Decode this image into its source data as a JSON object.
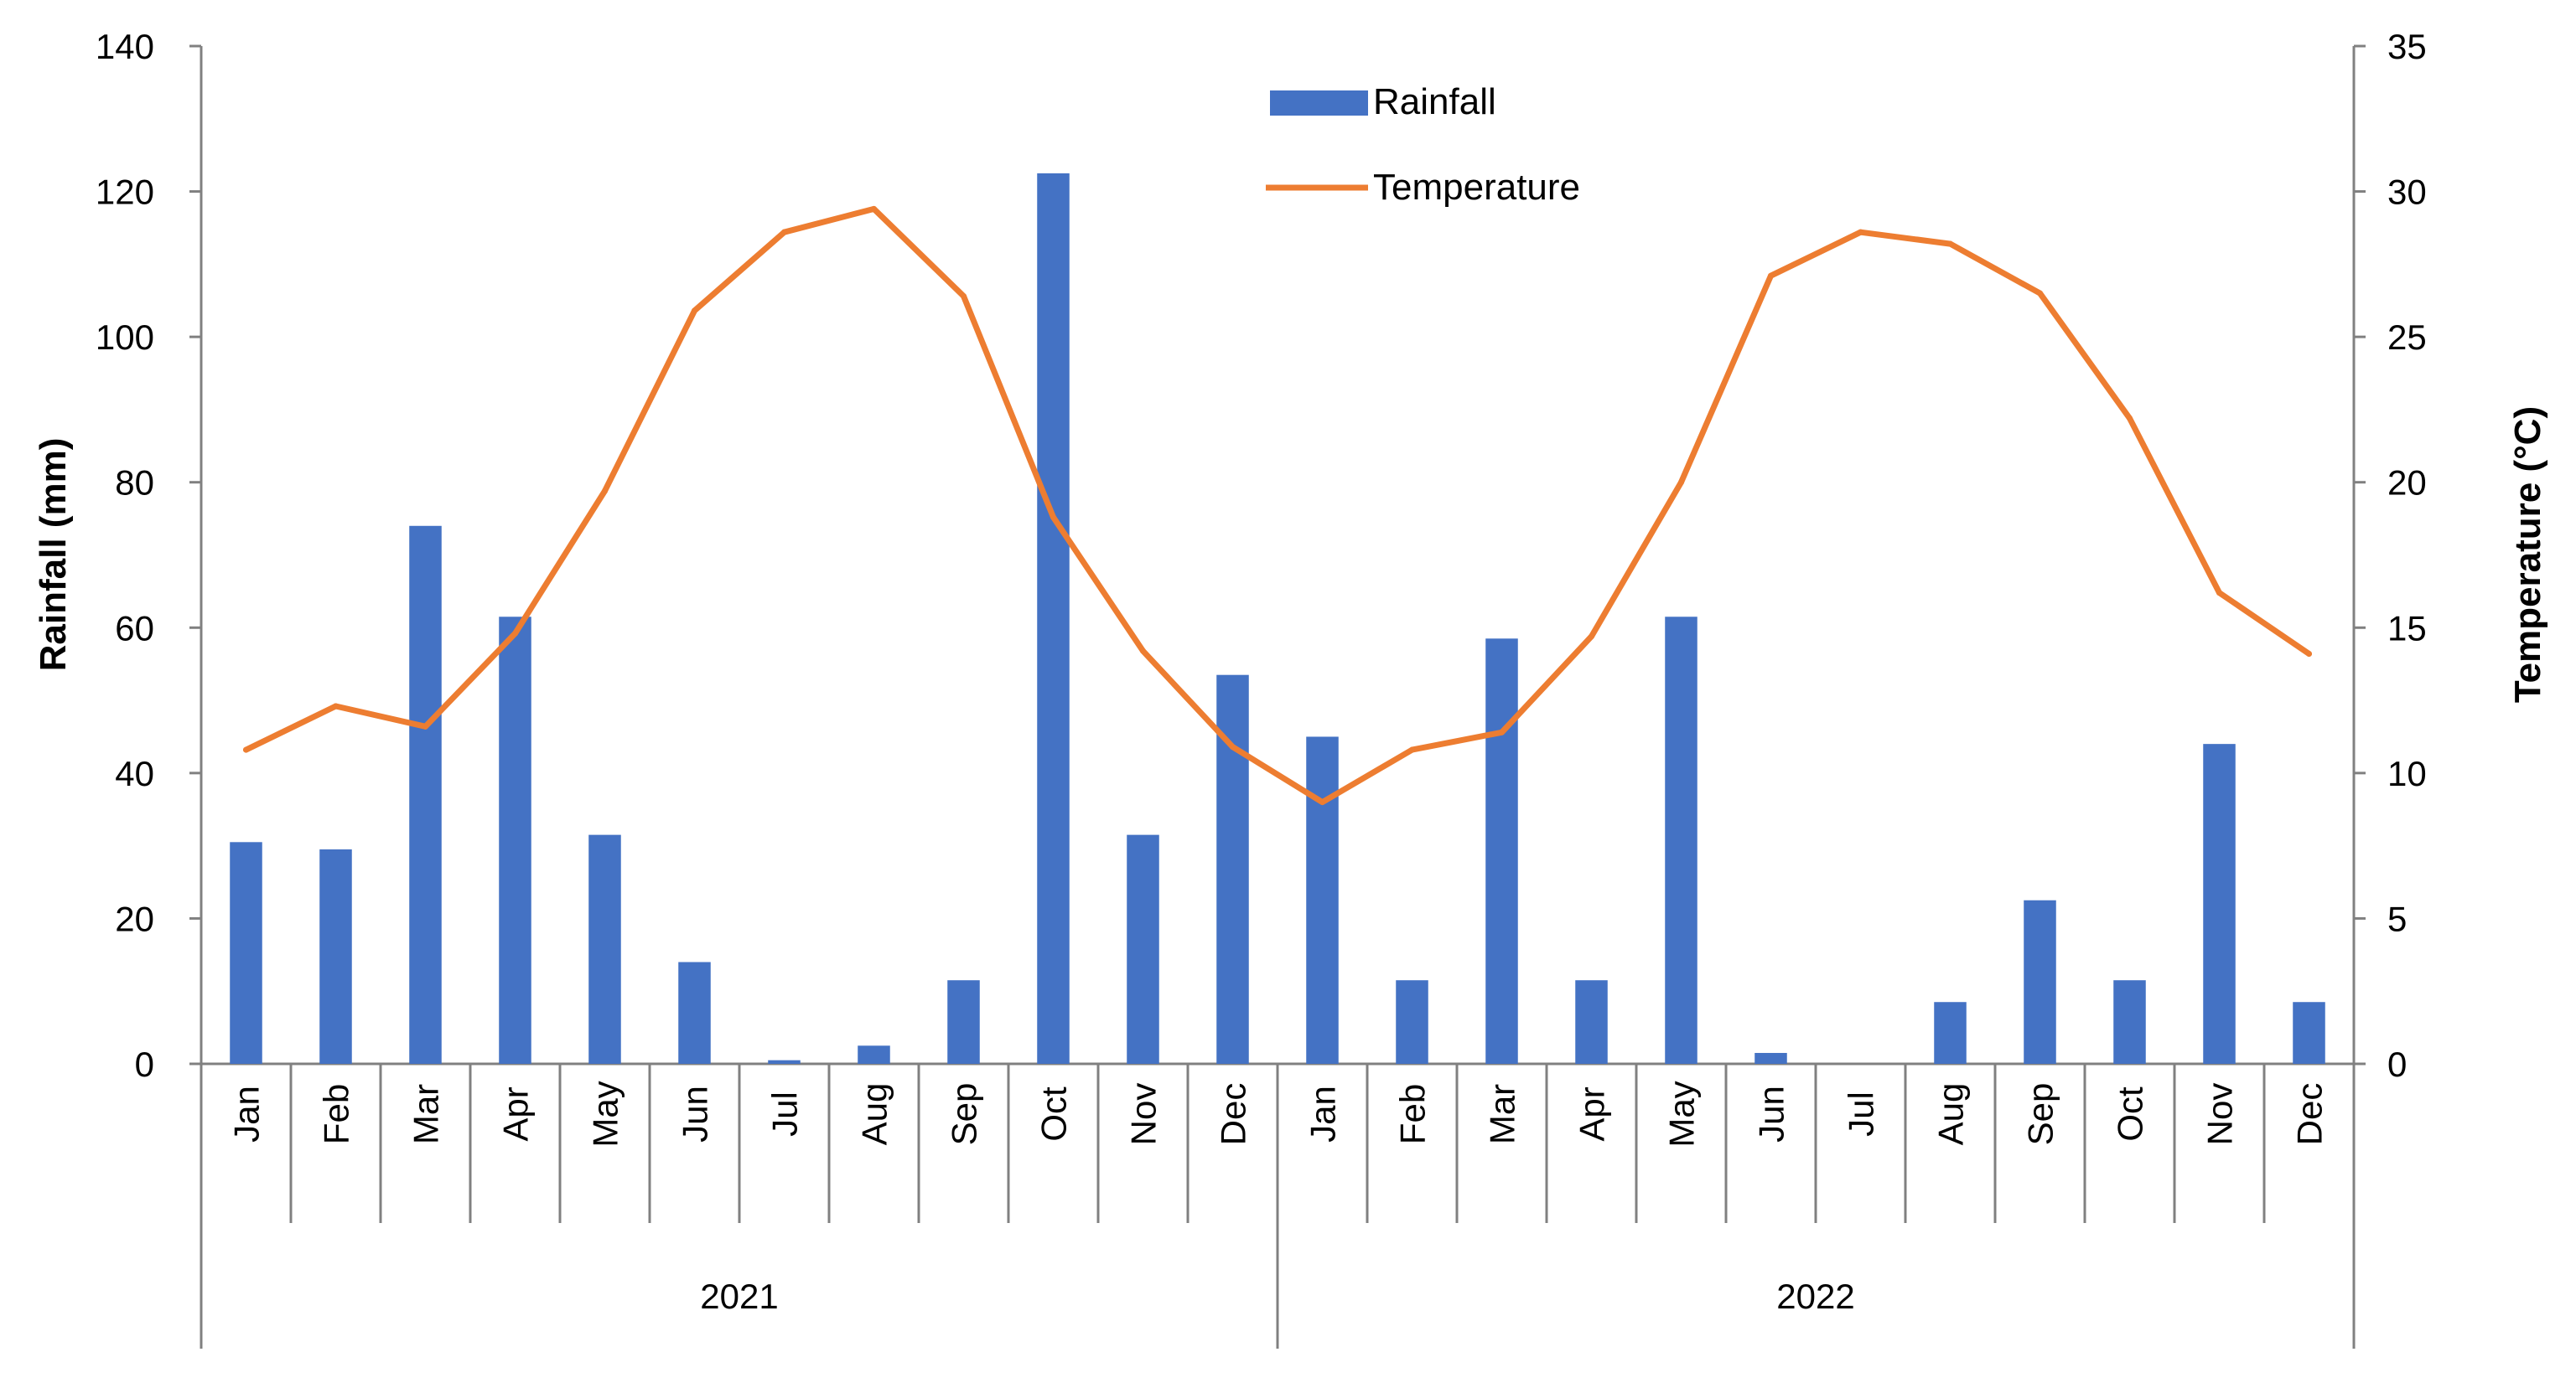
{
  "chart_data": {
    "type": "bar+line",
    "title": "",
    "years": [
      "2021",
      "2022"
    ],
    "categories": [
      "Jan",
      "Feb",
      "Mar",
      "Apr",
      "May",
      "Jun",
      "Jul",
      "Aug",
      "Sep",
      "Oct",
      "Nov",
      "Dec",
      "Jan",
      "Feb",
      "Mar",
      "Apr",
      "May",
      "Jun",
      "Jul",
      "Aug",
      "Sep",
      "Oct",
      "Nov",
      "Dec"
    ],
    "series": [
      {
        "name": "Rainfall",
        "type": "bar",
        "axis": "left",
        "color": "#4472C4",
        "values": [
          30.5,
          29.5,
          74,
          61.5,
          31.5,
          14,
          0.5,
          2.5,
          11.5,
          122.5,
          31.5,
          53.5,
          45,
          11.5,
          58.5,
          11.5,
          61.5,
          1.5,
          0,
          8.5,
          22.5,
          11.5,
          44,
          8.5
        ]
      },
      {
        "name": "Temperature",
        "type": "line",
        "axis": "right",
        "color": "#ED7D31",
        "values": [
          10.8,
          12.3,
          11.6,
          14.8,
          19.7,
          25.9,
          28.6,
          29.4,
          26.4,
          18.8,
          14.2,
          10.9,
          9.0,
          10.8,
          11.4,
          14.7,
          20.0,
          27.1,
          28.6,
          28.2,
          26.5,
          22.2,
          16.2,
          14.1
        ]
      }
    ],
    "y_left": {
      "label": "Rainfall (mm)",
      "min": 0,
      "max": 140,
      "step": 20
    },
    "y_right": {
      "label": "Temperature (°C)",
      "min": 0,
      "max": 35,
      "step": 5
    },
    "grid": false,
    "legend_position": "top-center"
  }
}
